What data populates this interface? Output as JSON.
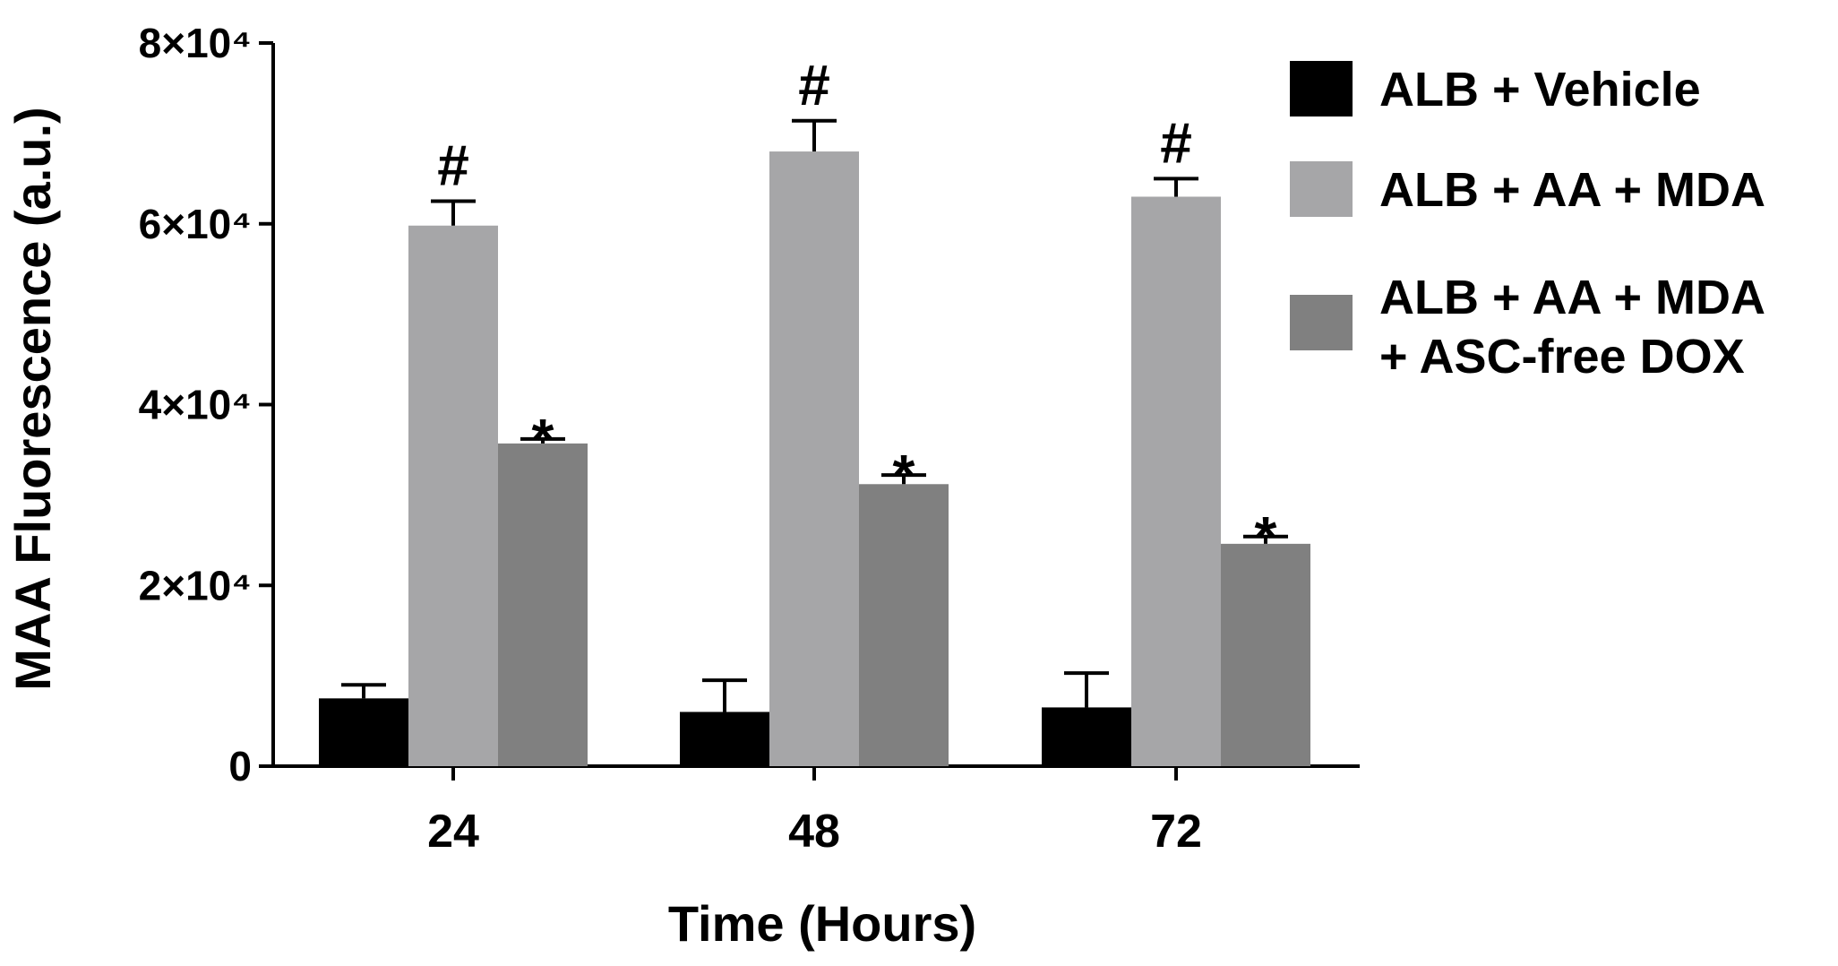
{
  "chart_data": {
    "type": "bar",
    "xlabel": "Time (Hours)",
    "ylabel": "MAA Fluorescence (a.u.)",
    "ylim": [
      0,
      80000
    ],
    "yticks": [
      {
        "value": 0,
        "label": "0"
      },
      {
        "value": 20000,
        "label": "2×10⁴"
      },
      {
        "value": 40000,
        "label": "4×10⁴"
      },
      {
        "value": 60000,
        "label": "6×10⁴"
      },
      {
        "value": 80000,
        "label": "8×10⁴"
      }
    ],
    "categories": [
      "24",
      "48",
      "72"
    ],
    "series": [
      {
        "name": "ALB + Vehicle",
        "name_lines": [
          "ALB + Vehicle"
        ],
        "color": "#000000",
        "values": [
          7500,
          6000,
          6500
        ],
        "errors": [
          1500,
          3500,
          3800
        ],
        "annotations": [
          "",
          "",
          ""
        ]
      },
      {
        "name": "ALB + AA + MDA",
        "name_lines": [
          "ALB + AA + MDA"
        ],
        "color": "#a6a6a8",
        "values": [
          59800,
          68000,
          63000
        ],
        "errors": [
          2700,
          3400,
          2000
        ],
        "annotations": [
          "#",
          "#",
          "#"
        ]
      },
      {
        "name": "ALB + AA + MDA + ASC-free DOX",
        "name_lines": [
          "ALB + AA + MDA",
          "+ ASC-free DOX"
        ],
        "color": "#808080",
        "values": [
          35700,
          31200,
          24600
        ],
        "errors": [
          500,
          1000,
          800
        ],
        "annotations": [
          "*",
          "*",
          "*"
        ]
      }
    ],
    "legend_position": "right",
    "grid": false
  }
}
